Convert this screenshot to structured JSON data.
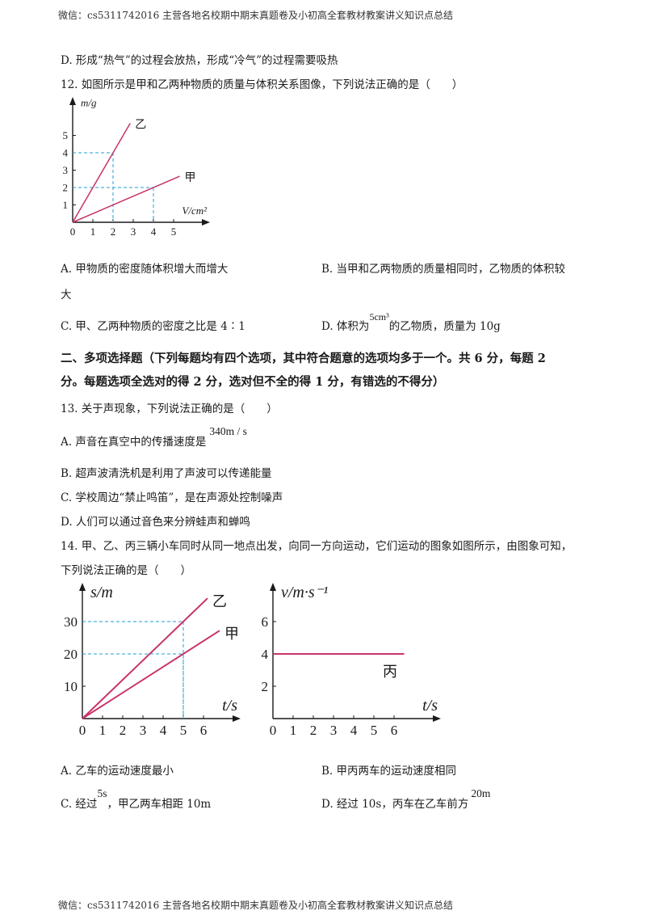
{
  "header": "微信：cs5311742016 主营各地名校期中期末真题卷及小初高全套教材教案讲义知识点总结",
  "footer": "微信：cs5311742016 主营各地名校期中期末真题卷及小初高全套教材教案讲义知识点总结",
  "q11_optD": "D. 形成“热气”的过程会放热，形成“冷气”的过程需要吸热",
  "q12": {
    "stem": "12. 如图所示是甲和乙两种物质的质量与体积关系图像，下列说法正确的是（　　）",
    "optA_line1": "A. 甲物质的密度随体积增大而增大",
    "optA_line2": "大",
    "optB": "B. 当甲和乙两物质的质量相同时，乙物质的体积较",
    "optC": "C. 甲、乙两种物质的密度之比是 4∶1",
    "optD_pre": "D. 体积为",
    "optD_val": "5cm³",
    "optD_post": "的乙物质，质量为 10g"
  },
  "section2": {
    "line1": "二、多项选择题（下列每题均有四个选项，其中符合题意的选项均多于一个。共 6 分，每题 2",
    "line2": "分。每题选项全选对的得 2 分，选对但不全的得 1 分，有错选的不得分）"
  },
  "q13": {
    "stem": "13. 关于声现象，下列说法正确的是（　　）",
    "optA_pre": "A. 声音在真空中的传播速度是",
    "optA_val": "340m / s",
    "optB": "B. 超声波清洗机是利用了声波可以传递能量",
    "optC": "C. 学校周边“禁止鸣笛”，是在声源处控制噪声",
    "optD": "D. 人们可以通过音色来分辨蛙声和蝉鸣"
  },
  "q14": {
    "stem1": "14. 甲、乙、丙三辆小车同时从同一地点出发，向同一方向运动，它们运动的图象如图所示，由图象可知，",
    "stem2": "下列说法正确的是（　　）",
    "optA": "A. 乙车的运动速度最小",
    "optB": "B. 甲丙两车的运动速度相同",
    "optC_pre": "C. 经过",
    "optC_val": "5s",
    "optC_post": "，甲乙两车相距 10m",
    "optD_pre": "D. 经过 10s，丙车在乙车前方",
    "optD_val": "20m"
  },
  "chart_data": [
    {
      "type": "line",
      "xlabel": "V/cm²",
      "ylabel": "m/g",
      "x_ticks": [
        "0",
        "1",
        "2",
        "3",
        "4",
        "5"
      ],
      "y_ticks": [
        "1",
        "2",
        "3",
        "4",
        "5"
      ],
      "series": [
        {
          "name": "乙",
          "points": [
            [
              0,
              0
            ],
            [
              2,
              4
            ]
          ]
        },
        {
          "name": "甲",
          "points": [
            [
              0,
              0
            ],
            [
              4,
              2
            ]
          ]
        }
      ],
      "guides": [
        [
          2,
          4
        ],
        [
          4,
          2
        ]
      ],
      "xlim": [
        0,
        5.5
      ],
      "ylim": [
        0,
        5.5
      ]
    },
    {
      "type": "line",
      "xlabel": "t/s",
      "ylabel": "s/m",
      "x_ticks": [
        "0",
        "1",
        "2",
        "3",
        "4",
        "5",
        "6"
      ],
      "y_ticks": [
        "10",
        "20",
        "30"
      ],
      "series": [
        {
          "name": "乙",
          "points": [
            [
              0,
              0
            ],
            [
              5,
              30
            ]
          ]
        },
        {
          "name": "甲",
          "points": [
            [
              0,
              0
            ],
            [
              5,
              20
            ]
          ]
        }
      ],
      "guides": [
        [
          5,
          30
        ],
        [
          5,
          20
        ]
      ],
      "xlim": [
        0,
        6.5
      ],
      "ylim": [
        0,
        35
      ]
    },
    {
      "type": "line",
      "xlabel": "t/s",
      "ylabel": "v/m·s⁻¹",
      "x_ticks": [
        "0",
        "1",
        "2",
        "3",
        "4",
        "5",
        "6"
      ],
      "y_ticks": [
        "2",
        "4",
        "6"
      ],
      "series": [
        {
          "name": "丙",
          "points": [
            [
              0,
              4
            ],
            [
              6.5,
              4
            ]
          ]
        }
      ],
      "xlim": [
        0,
        6.5
      ],
      "ylim": [
        0,
        7
      ]
    }
  ],
  "colors": {
    "line": "#c8336b",
    "guide": "#1e9fd6",
    "axis": "#1a1a1a"
  }
}
